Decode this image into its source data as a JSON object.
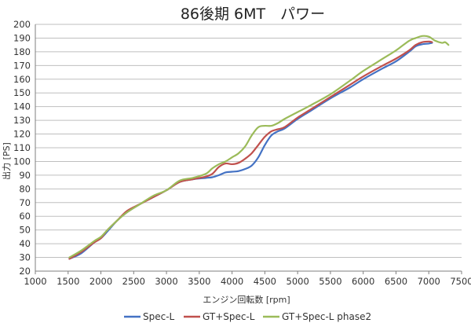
{
  "chart_data": {
    "type": "line",
    "title": "86後期 6MT　パワー",
    "xlabel": "エンジン回転数 [rpm]",
    "ylabel": "出力 [PS]",
    "xlim": [
      1000,
      7500
    ],
    "ylim": [
      20,
      200
    ],
    "xticks": [
      1000,
      1500,
      2000,
      2500,
      3000,
      3500,
      4000,
      4500,
      5000,
      5500,
      6000,
      6500,
      7000,
      7500
    ],
    "yticks": [
      20,
      30,
      40,
      50,
      60,
      70,
      80,
      90,
      100,
      110,
      120,
      130,
      140,
      150,
      160,
      170,
      180,
      190,
      200
    ],
    "grid": true,
    "legend_position": "bottom",
    "series": [
      {
        "name": "Spec-L",
        "color": "#4472c4",
        "points": [
          [
            1520,
            29
          ],
          [
            1700,
            33
          ],
          [
            1900,
            41
          ],
          [
            2000,
            44
          ],
          [
            2100,
            49
          ],
          [
            2250,
            57
          ],
          [
            2400,
            63
          ],
          [
            2600,
            69
          ],
          [
            2800,
            74
          ],
          [
            3000,
            79
          ],
          [
            3200,
            85
          ],
          [
            3400,
            87
          ],
          [
            3600,
            88
          ],
          [
            3700,
            88.5
          ],
          [
            3800,
            90
          ],
          [
            3900,
            92
          ],
          [
            4000,
            92.5
          ],
          [
            4100,
            93
          ],
          [
            4200,
            94.5
          ],
          [
            4300,
            97
          ],
          [
            4400,
            103
          ],
          [
            4500,
            112
          ],
          [
            4600,
            119
          ],
          [
            4700,
            122
          ],
          [
            4800,
            124
          ],
          [
            5000,
            131
          ],
          [
            5200,
            137
          ],
          [
            5500,
            146
          ],
          [
            5800,
            154
          ],
          [
            6000,
            160
          ],
          [
            6300,
            168
          ],
          [
            6500,
            173
          ],
          [
            6700,
            180
          ],
          [
            6800,
            184
          ],
          [
            6900,
            185.5
          ],
          [
            7000,
            186
          ],
          [
            7050,
            186.5
          ]
        ]
      },
      {
        "name": "GT+Spec-L",
        "color": "#c0504d",
        "points": [
          [
            1520,
            29
          ],
          [
            1700,
            34
          ],
          [
            1900,
            41
          ],
          [
            2000,
            44
          ],
          [
            2100,
            50
          ],
          [
            2250,
            57
          ],
          [
            2400,
            64
          ],
          [
            2600,
            69
          ],
          [
            2800,
            74
          ],
          [
            3000,
            79
          ],
          [
            3200,
            85
          ],
          [
            3400,
            87
          ],
          [
            3600,
            89
          ],
          [
            3700,
            91
          ],
          [
            3800,
            96
          ],
          [
            3900,
            98.5
          ],
          [
            4000,
            98
          ],
          [
            4100,
            99
          ],
          [
            4200,
            102
          ],
          [
            4300,
            106
          ],
          [
            4400,
            112
          ],
          [
            4500,
            118
          ],
          [
            4600,
            122
          ],
          [
            4700,
            123.5
          ],
          [
            4800,
            125
          ],
          [
            5000,
            132
          ],
          [
            5200,
            138
          ],
          [
            5500,
            147
          ],
          [
            5800,
            156
          ],
          [
            6000,
            162
          ],
          [
            6300,
            170
          ],
          [
            6500,
            175
          ],
          [
            6700,
            181
          ],
          [
            6800,
            185
          ],
          [
            6900,
            187
          ],
          [
            7000,
            187.5
          ],
          [
            7050,
            187
          ]
        ]
      },
      {
        "name": "GT+Spec-L phase2",
        "color": "#9bbb59",
        "points": [
          [
            1520,
            30
          ],
          [
            1700,
            35
          ],
          [
            1900,
            42
          ],
          [
            2000,
            45
          ],
          [
            2100,
            50
          ],
          [
            2250,
            57
          ],
          [
            2400,
            63
          ],
          [
            2600,
            69
          ],
          [
            2800,
            75
          ],
          [
            3000,
            79
          ],
          [
            3200,
            86
          ],
          [
            3400,
            88
          ],
          [
            3600,
            91
          ],
          [
            3700,
            95
          ],
          [
            3800,
            98
          ],
          [
            3900,
            100
          ],
          [
            4000,
            103
          ],
          [
            4100,
            106
          ],
          [
            4200,
            111
          ],
          [
            4300,
            119
          ],
          [
            4400,
            125
          ],
          [
            4500,
            126
          ],
          [
            4600,
            126
          ],
          [
            4700,
            128
          ],
          [
            4800,
            131
          ],
          [
            5000,
            136
          ],
          [
            5200,
            141
          ],
          [
            5500,
            149
          ],
          [
            5800,
            159
          ],
          [
            6000,
            166
          ],
          [
            6300,
            175
          ],
          [
            6500,
            181
          ],
          [
            6700,
            188
          ],
          [
            6800,
            190
          ],
          [
            6900,
            191.5
          ],
          [
            7000,
            191
          ],
          [
            7100,
            188
          ],
          [
            7200,
            186.5
          ],
          [
            7250,
            187
          ],
          [
            7300,
            185
          ]
        ]
      }
    ]
  }
}
